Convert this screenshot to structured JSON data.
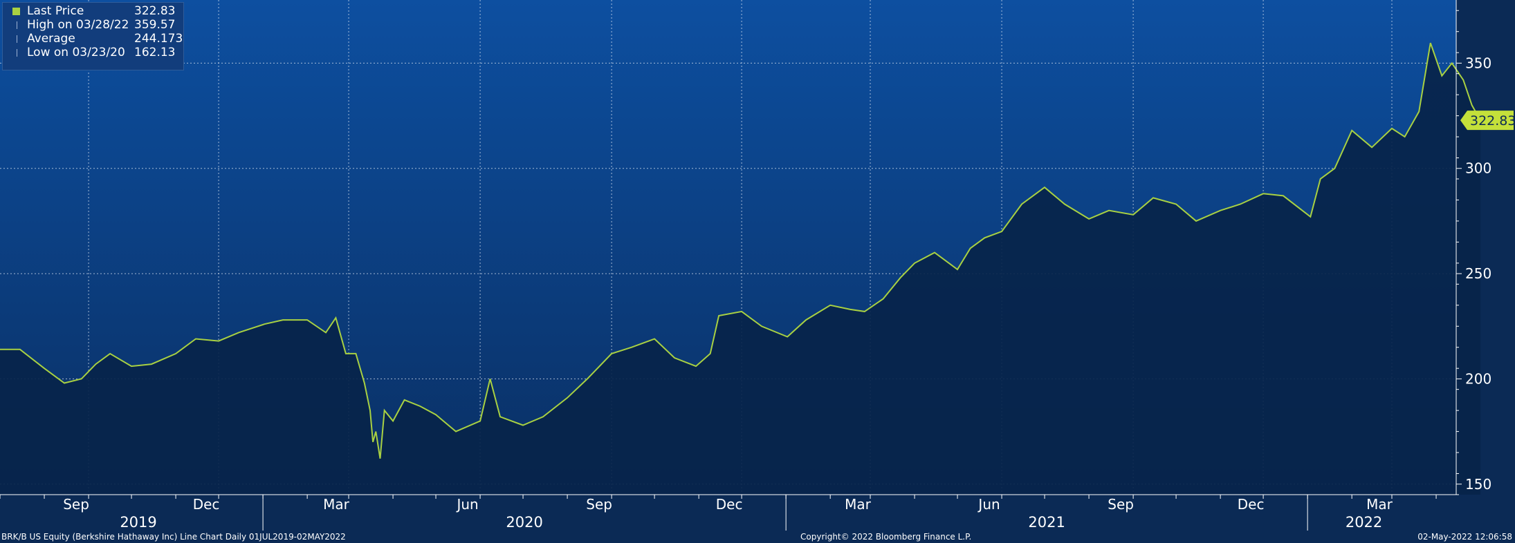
{
  "chart_data": {
    "type": "line",
    "series": [
      {
        "name": "Last Price",
        "color": "#a9d142",
        "x": [
          "2019-07-01",
          "2019-07-15",
          "2019-08-01",
          "2019-08-15",
          "2019-08-27",
          "2019-09-06",
          "2019-09-16",
          "2019-10-01",
          "2019-10-15",
          "2019-11-01",
          "2019-11-15",
          "2019-12-01",
          "2019-12-15",
          "2020-01-02",
          "2020-01-15",
          "2020-02-01",
          "2020-02-14",
          "2020-02-21",
          "2020-02-28",
          "2020-03-06",
          "2020-03-12",
          "2020-03-16",
          "2020-03-18",
          "2020-03-20",
          "2020-03-23",
          "2020-03-26",
          "2020-04-01",
          "2020-04-09",
          "2020-04-20",
          "2020-05-01",
          "2020-05-15",
          "2020-06-01",
          "2020-06-08",
          "2020-06-15",
          "2020-07-01",
          "2020-07-15",
          "2020-08-01",
          "2020-08-15",
          "2020-09-01",
          "2020-09-15",
          "2020-10-01",
          "2020-10-15",
          "2020-10-30",
          "2020-11-09",
          "2020-11-15",
          "2020-12-01",
          "2020-12-15",
          "2021-01-02",
          "2021-01-15",
          "2021-02-01",
          "2021-02-15",
          "2021-02-25",
          "2021-03-10",
          "2021-03-22",
          "2021-04-01",
          "2021-04-15",
          "2021-05-01",
          "2021-05-10",
          "2021-05-20",
          "2021-06-01",
          "2021-06-15",
          "2021-07-01",
          "2021-07-15",
          "2021-08-01",
          "2021-08-15",
          "2021-09-01",
          "2021-09-15",
          "2021-10-01",
          "2021-10-15",
          "2021-11-01",
          "2021-11-15",
          "2021-12-01",
          "2021-12-15",
          "2022-01-03",
          "2022-01-10",
          "2022-01-20",
          "2022-02-01",
          "2022-02-15",
          "2022-03-01",
          "2022-03-10",
          "2022-03-20",
          "2022-03-28",
          "2022-04-05",
          "2022-04-12",
          "2022-04-20",
          "2022-04-26",
          "2022-05-02"
        ],
        "y": [
          214,
          214,
          205,
          198,
          200,
          207,
          212,
          206,
          207,
          212,
          219,
          218,
          222,
          226,
          228,
          228,
          222,
          229,
          212,
          212,
          198,
          185,
          170,
          175,
          162.13,
          185,
          180,
          190,
          187,
          183,
          175,
          180,
          200,
          182,
          178,
          182,
          191,
          200,
          212,
          215,
          219,
          210,
          206,
          212,
          230,
          232,
          225,
          220,
          228,
          235,
          233,
          232,
          238,
          248,
          255,
          260,
          252,
          262,
          267,
          270,
          283,
          291,
          283,
          276,
          280,
          278,
          286,
          283,
          275,
          280,
          283,
          288,
          287,
          277,
          295,
          300,
          318,
          310,
          319,
          315,
          327,
          359.57,
          344,
          350,
          342,
          330,
          322.83
        ]
      }
    ],
    "ylim": [
      145,
      380
    ],
    "yticks": [
      150,
      200,
      250,
      300,
      350
    ],
    "ytick_labels": [
      "150",
      "200",
      "250",
      "300",
      "350"
    ],
    "month_ticks": [
      "Sep",
      "Dec",
      "Mar",
      "Jun",
      "Sep",
      "Dec",
      "Mar",
      "Jun",
      "Sep",
      "Dec",
      "Mar"
    ],
    "year_labels": [
      "2019",
      "2020",
      "2021",
      "2022"
    ],
    "grid": true,
    "legend": [
      {
        "label": "Last Price",
        "value": "322.83",
        "marker": "square"
      },
      {
        "label": "High on 03/28/22",
        "value": "359.57",
        "marker": "high"
      },
      {
        "label": "Average",
        "value": "244.173",
        "marker": "avg"
      },
      {
        "label": "Low on 03/23/20",
        "value": "162.13",
        "marker": "low"
      }
    ],
    "last_value_label": "322.83"
  },
  "footer": {
    "left": "BRK/B US Equity (Berkshire Hathaway Inc) Line Chart  Daily 01JUL2019-02MAY2022",
    "center": "Copyright© 2022 Bloomberg Finance L.P.",
    "right": "02-May-2022 12:06:58"
  },
  "colors": {
    "background_top": "#0d4fa0",
    "background_bottom": "#0a2a58",
    "line": "#a9d142",
    "fill": "#08244a"
  }
}
